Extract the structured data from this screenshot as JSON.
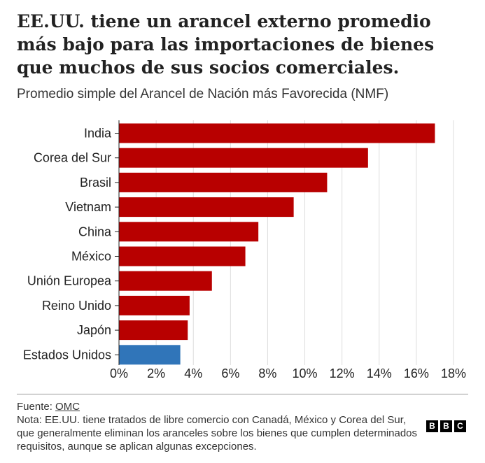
{
  "title": "EE.UU. tiene un arancel externo promedio más bajo para las importaciones de bienes que muchos de sus socios comerciales.",
  "subtitle": "Promedio simple del Arancel de Nación más Favorecida (NMF)",
  "footer": {
    "source_label": "Fuente: ",
    "source_link": "OMC",
    "note": "Nota: EE.UU. tiene tratados de libre comercio con Canadá, México y Corea del Sur, que generalmente eliminan los aranceles sobre los bienes que cumplen determinados requisitos, aunque se aplican algunas excepciones."
  },
  "logo": [
    "B",
    "B",
    "C"
  ],
  "colors": {
    "bar": "#b80000",
    "highlight": "#3075b9",
    "grid": "#dddddd",
    "axis": "#222222"
  },
  "chart_data": {
    "type": "bar",
    "orientation": "horizontal",
    "categories": [
      "India",
      "Corea del Sur",
      "Brasil",
      "Vietnam",
      "China",
      "México",
      "Unión Europea",
      "Reino Unido",
      "Japón",
      "Estados Unidos"
    ],
    "values": [
      17.0,
      13.4,
      11.2,
      9.4,
      7.5,
      6.8,
      5.0,
      3.8,
      3.7,
      3.3
    ],
    "highlight": "Estados Unidos",
    "xlim": [
      0,
      18
    ],
    "xticks": [
      "0%",
      "2%",
      "4%",
      "6%",
      "8%",
      "10%",
      "12%",
      "14%",
      "16%",
      "18%"
    ],
    "grid": true,
    "legend": false
  }
}
